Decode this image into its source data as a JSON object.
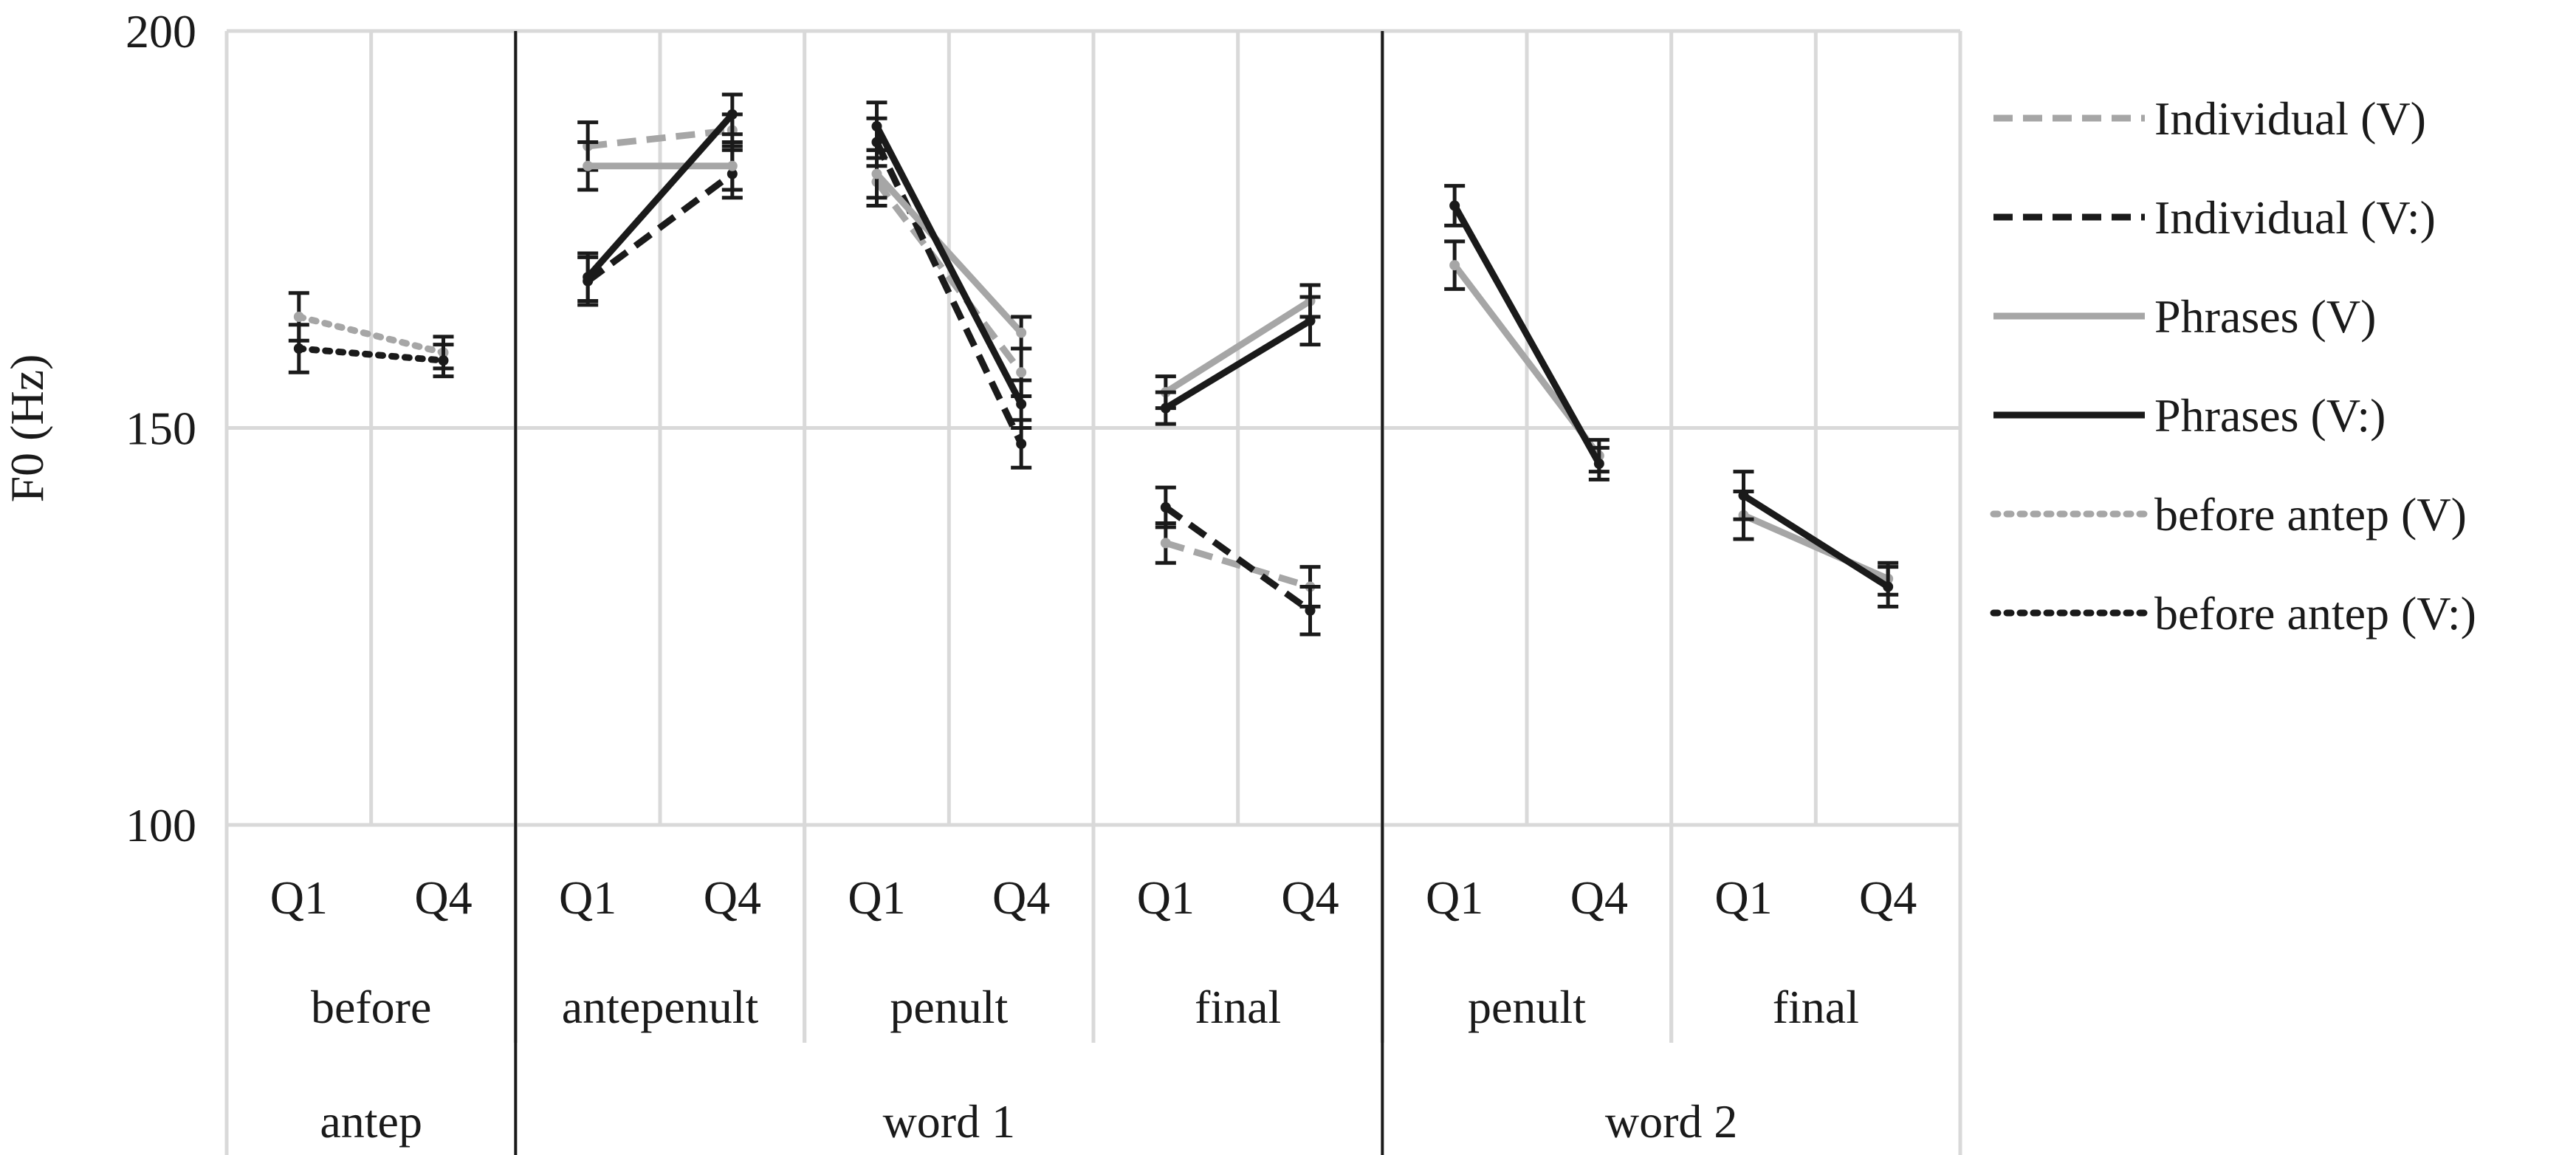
{
  "chart_data": {
    "type": "line",
    "ylabel": "F0 (Hz)",
    "ylim": [
      100,
      200
    ],
    "yticks": [
      100,
      150,
      200
    ],
    "x": [
      "Q1",
      "Q4",
      "Q1",
      "Q4",
      "Q1",
      "Q4",
      "Q1",
      "Q4",
      "Q1",
      "Q4",
      "Q1",
      "Q4"
    ],
    "syllable_groups": [
      {
        "label": "before",
        "span": [
          0,
          1
        ]
      },
      {
        "label": "antepenult",
        "span": [
          2,
          3
        ]
      },
      {
        "label": "penult",
        "span": [
          4,
          5
        ]
      },
      {
        "label": "final",
        "span": [
          6,
          7
        ]
      },
      {
        "label": "penult",
        "span": [
          8,
          9
        ]
      },
      {
        "label": "final",
        "span": [
          10,
          11
        ]
      }
    ],
    "word_groups": [
      {
        "label": "antep",
        "span": [
          0,
          1
        ]
      },
      {
        "label": "word 1",
        "span": [
          2,
          7
        ]
      },
      {
        "label": "word 2",
        "span": [
          8,
          11
        ]
      }
    ],
    "grid": true,
    "legend_position": "right",
    "series": [
      {
        "name": "Individual (V)",
        "color": "#a6a6a6",
        "dash": "dashed",
        "segments": [
          {
            "x": [
              2,
              3
            ],
            "y": [
              185.5,
              187.5
            ],
            "err": [
              3,
              2
            ]
          },
          {
            "x": [
              4,
              5
            ],
            "y": [
              181,
              157
            ],
            "err": [
              3,
              3
            ]
          },
          {
            "x": [
              6,
              7
            ],
            "y": [
              135.5,
              130
            ],
            "err": [
              2.5,
              2.5
            ]
          }
        ]
      },
      {
        "name": "Individual (V:)",
        "color": "#1a1a1a",
        "dash": "dashed",
        "segments": [
          {
            "x": [
              2,
              3
            ],
            "y": [
              168.5,
              182
            ],
            "err": [
              3,
              3
            ]
          },
          {
            "x": [
              4,
              5
            ],
            "y": [
              186,
              148
            ],
            "err": [
              3,
              3
            ]
          },
          {
            "x": [
              6,
              7
            ],
            "y": [
              140,
              127
            ],
            "err": [
              2.5,
              3
            ]
          }
        ]
      },
      {
        "name": "Phrases (V)",
        "color": "#a6a6a6",
        "dash": "solid",
        "segments": [
          {
            "x": [
              2,
              3
            ],
            "y": [
              183,
              183
            ],
            "err": [
              3,
              3
            ]
          },
          {
            "x": [
              4,
              5
            ],
            "y": [
              182,
              162
            ],
            "err": [
              3,
              2
            ]
          },
          {
            "x": [
              6,
              7
            ],
            "y": [
              154.5,
              166
            ],
            "err": [
              2,
              2
            ]
          },
          {
            "x": [
              8,
              9
            ],
            "y": [
              170.5,
              146.5
            ],
            "err": [
              3,
              2
            ]
          },
          {
            "x": [
              10,
              11
            ],
            "y": [
              139,
              131
            ],
            "err": [
              3,
              2
            ]
          }
        ]
      },
      {
        "name": "Phrases (V:)",
        "color": "#1a1a1a",
        "dash": "solid",
        "segments": [
          {
            "x": [
              2,
              3
            ],
            "y": [
              169,
              189.5
            ],
            "err": [
              3,
              2.5
            ]
          },
          {
            "x": [
              4,
              5
            ],
            "y": [
              188,
              153
            ],
            "err": [
              3,
              3
            ]
          },
          {
            "x": [
              6,
              7
            ],
            "y": [
              152.5,
              163.5
            ],
            "err": [
              2,
              3
            ]
          },
          {
            "x": [
              8,
              9
            ],
            "y": [
              178,
              145.5
            ],
            "err": [
              2.5,
              2
            ]
          },
          {
            "x": [
              10,
              11
            ],
            "y": [
              141.5,
              130
            ],
            "err": [
              3,
              2.5
            ]
          }
        ]
      },
      {
        "name": "before antep (V)",
        "color": "#a6a6a6",
        "dash": "dotted",
        "segments": [
          {
            "x": [
              0,
              1
            ],
            "y": [
              164,
              159.5
            ],
            "err": [
              3,
              2
            ]
          }
        ]
      },
      {
        "name": "before antep (V:)",
        "color": "#1a1a1a",
        "dash": "dotted",
        "segments": [
          {
            "x": [
              0,
              1
            ],
            "y": [
              160,
              158.5
            ],
            "err": [
              3,
              2
            ]
          }
        ]
      }
    ]
  }
}
